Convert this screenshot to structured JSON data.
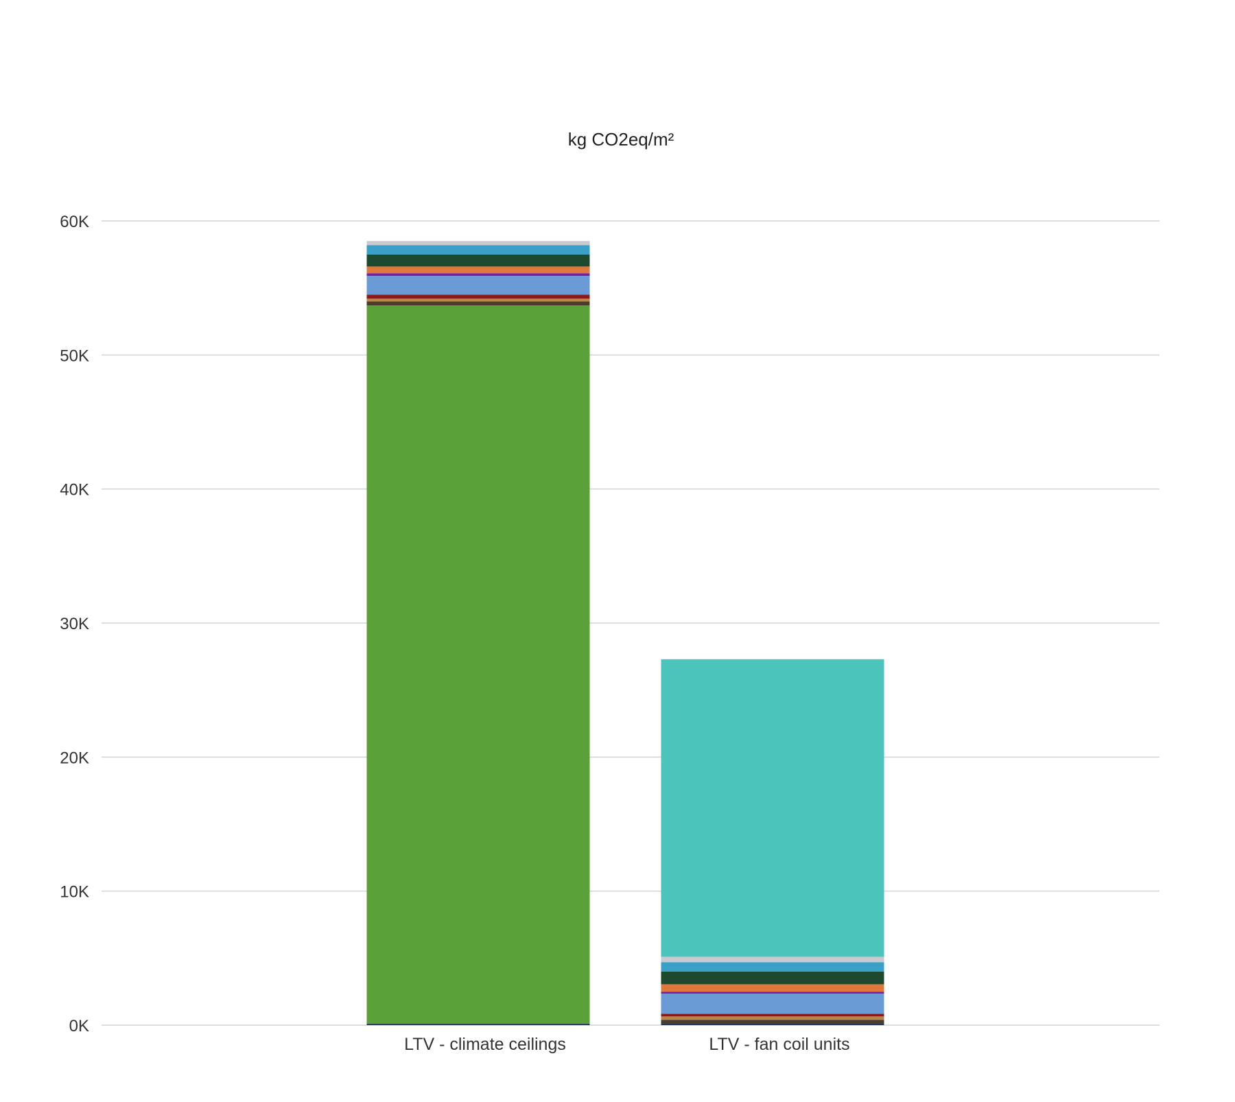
{
  "chart_data": {
    "type": "bar",
    "stacked": true,
    "title": "kg CO2eq/m²",
    "xlabel": "",
    "ylabel": "",
    "ylim": [
      0,
      60000
    ],
    "yticks": [
      0,
      10000,
      20000,
      30000,
      40000,
      50000,
      60000
    ],
    "ytick_labels": [
      "0K",
      "10K",
      "20K",
      "30K",
      "40K",
      "50K",
      "60K"
    ],
    "grid": true,
    "legend": "none",
    "categories": [
      "LTV - climate ceilings",
      "LTV - fan coil units"
    ],
    "series": [
      {
        "color": "#1f3a5f",
        "values": [
          100,
          150
        ]
      },
      {
        "color": "#5ba13a",
        "values": [
          53600,
          0
        ]
      },
      {
        "color": "#4a3b2a",
        "values": [
          300,
          250
        ]
      },
      {
        "color": "#b8864b",
        "values": [
          200,
          250
        ]
      },
      {
        "color": "#8b1a1a",
        "values": [
          300,
          200
        ]
      },
      {
        "color": "#6a9bd4",
        "values": [
          1400,
          1500
        ]
      },
      {
        "color": "#7a1fa2",
        "values": [
          200,
          150
        ]
      },
      {
        "color": "#e0783b",
        "values": [
          500,
          550
        ]
      },
      {
        "color": "#1d4a2e",
        "values": [
          900,
          950
        ]
      },
      {
        "color": "#3aa0c8",
        "values": [
          700,
          700
        ]
      },
      {
        "color": "#c9c9cf",
        "values": [
          300,
          400
        ]
      },
      {
        "color": "#4bc4bc",
        "values": [
          0,
          22200
        ]
      }
    ]
  }
}
